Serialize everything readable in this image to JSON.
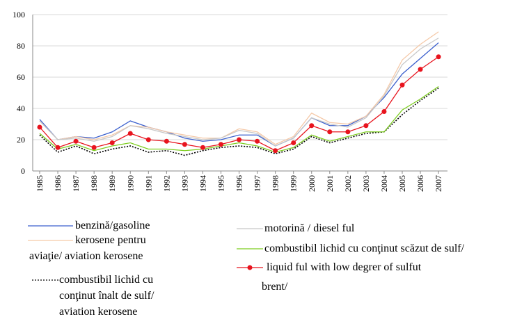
{
  "chart_data": {
    "type": "line",
    "categories": [
      "1985",
      "1986",
      "1987",
      "1988",
      "1989",
      "1990",
      "1991",
      "1992",
      "1993",
      "1994",
      "1995",
      "1996",
      "1997",
      "1998",
      "1999",
      "2000",
      "2001",
      "2002",
      "2003",
      "2004",
      "2005",
      "2006",
      "2007"
    ],
    "ylim": [
      0,
      100
    ],
    "yticks": [
      0,
      20,
      40,
      60,
      80,
      100
    ],
    "grid": true,
    "series": [
      {
        "name": "benzină/gasoline",
        "color": "#3a5fcd",
        "values": [
          33,
          20,
          22,
          21,
          25,
          32,
          28,
          25,
          21,
          19,
          20,
          23,
          23,
          16,
          21,
          34,
          29,
          29,
          35,
          47,
          62,
          72,
          82
        ]
      },
      {
        "name": "kerosene pentru aviaţie/ aviation kerosene",
        "color": "#f5c9a8",
        "values": [
          32,
          20,
          22,
          20,
          23,
          29,
          28,
          25,
          23,
          21,
          21,
          27,
          25,
          17,
          22,
          37,
          31,
          30,
          35,
          49,
          71,
          81,
          89
        ]
      },
      {
        "name": "combustibil lichid cu conţinut înalt de sulf/ aviation kerosene",
        "color": "#000000",
        "style": "dotted",
        "values": [
          23,
          12,
          16,
          11,
          14,
          16,
          12,
          13,
          10,
          13,
          15,
          16,
          15,
          11,
          14,
          22,
          18,
          21,
          24,
          25,
          36,
          45,
          53
        ]
      },
      {
        "name": "motorină / diesel ful",
        "color": "#c8c8c8",
        "values": [
          32,
          20,
          21,
          19,
          22,
          29,
          27,
          24,
          22,
          20,
          21,
          26,
          24,
          16,
          21,
          34,
          30,
          28,
          34,
          48,
          68,
          78,
          85
        ]
      },
      {
        "name": "combustibil lichid cu conţinut scăzut de sulf/",
        "color": "#7ccd1e",
        "values": [
          24,
          14,
          17,
          13,
          16,
          18,
          14,
          14,
          13,
          14,
          16,
          18,
          16,
          12,
          15,
          23,
          19,
          22,
          25,
          25,
          39,
          46,
          54
        ]
      },
      {
        "name": "liquid ful with low degrer of sulfut",
        "color": "#e8141e",
        "marker": "circle",
        "values": [
          28,
          15,
          19,
          15,
          18,
          24,
          20,
          19,
          17,
          15,
          17,
          20,
          19,
          13,
          18,
          29,
          25,
          25,
          29,
          38,
          55,
          65,
          73
        ]
      }
    ],
    "legend_note": "brent/"
  }
}
